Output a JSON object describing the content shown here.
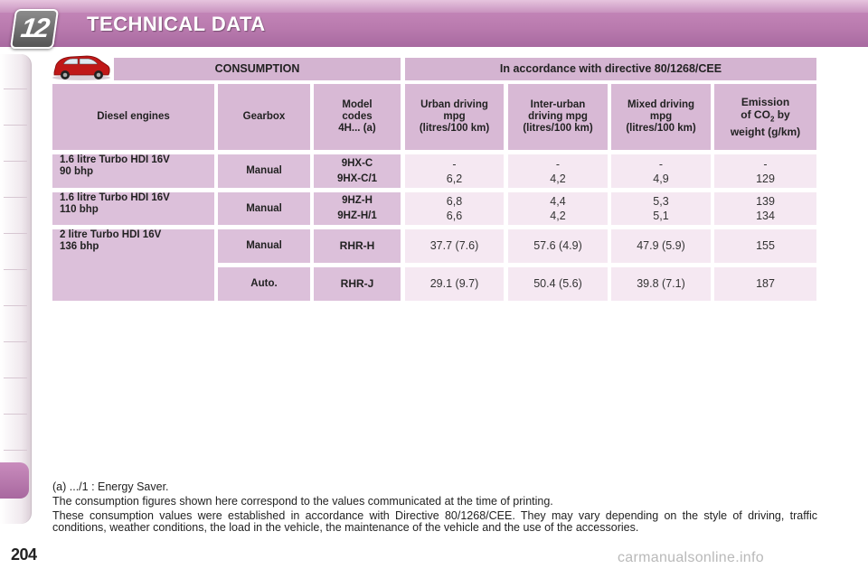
{
  "header": {
    "chapter": "12",
    "title": "TECHNICAL DATA"
  },
  "page_number": "204",
  "table": {
    "banner_left": "CONSUMPTION",
    "banner_right": "In accordance with directive 80/1268/CEE",
    "col_engine": "Diesel engines",
    "col_gearbox": "Gearbox",
    "col_model": [
      "Model",
      "codes",
      "4H... (a)"
    ],
    "col_urban": [
      "Urban driving",
      "mpg",
      "(litres/100 km)"
    ],
    "col_inter": [
      "Inter-urban",
      "driving mpg",
      "(litres/100 km)"
    ],
    "col_mixed": [
      "Mixed driving",
      "mpg",
      "(litres/100 km)"
    ],
    "col_emission": [
      "Emission",
      "of CO",
      "2",
      " by",
      "weight (g/km)"
    ],
    "rows": [
      {
        "engine": [
          "1.6 litre Turbo HDI 16V",
          "90 bhp"
        ],
        "gearbox": "Manual",
        "codes": [
          "9HX-C",
          "9HX-C/1"
        ],
        "urban": [
          "-",
          "6,2"
        ],
        "inter": [
          "-",
          "4,2"
        ],
        "mixed": [
          "-",
          "4,9"
        ],
        "emission": [
          "-",
          "129"
        ]
      },
      {
        "engine": [
          "1.6 litre Turbo HDI 16V",
          "110 bhp"
        ],
        "gearbox": "Manual",
        "codes": [
          "9HZ-H",
          "9HZ-H/1"
        ],
        "urban": [
          "6,8",
          "6,6"
        ],
        "inter": [
          "4,4",
          "4,2"
        ],
        "mixed": [
          "5,3",
          "5,1"
        ],
        "emission": [
          "139",
          "134"
        ]
      },
      {
        "engine": [
          "2 litre Turbo HDI 16V",
          "136 bhp"
        ],
        "gearbox": "Manual",
        "codes": "RHR-H",
        "urban": "37.7 (7.6)",
        "inter": "57.6 (4.9)",
        "mixed": "47.9 (5.9)",
        "emission": "155"
      },
      {
        "gearbox": "Auto.",
        "codes": "RHR-J",
        "urban": "29.1 (9.7)",
        "inter": "50.4 (5.6)",
        "mixed": "39.8 (7.1)",
        "emission": "187"
      }
    ]
  },
  "notes": {
    "n1": "(a) .../1 : Energy Saver.",
    "n2": "The consumption figures shown here correspond to the values communicated at the time of printing.",
    "n3": "These consumption values were established in accordance with Directive 80/1268/CEE. They may vary depending on the style of driving, traffic conditions, weather conditions, the load in the vehicle, the maintenance of the vehicle and the use of the accessories."
  },
  "watermark": "carmanualsonline.info"
}
